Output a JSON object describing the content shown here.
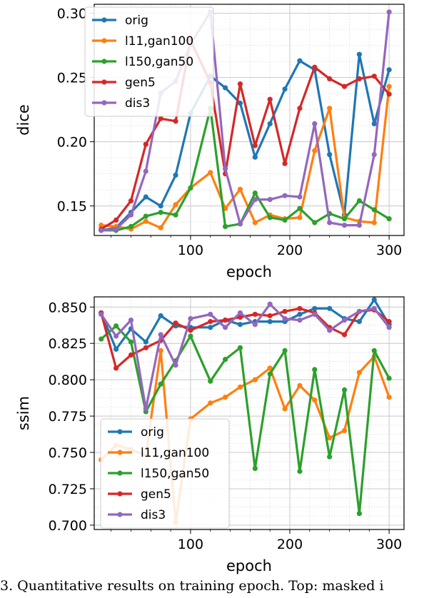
{
  "caption": "3. Quantitative results on training epoch. Top: masked i",
  "chart_data": [
    {
      "type": "line",
      "xlabel": "epoch",
      "ylabel": "dice",
      "xlim": [
        3,
        315
      ],
      "ylim": [
        0.127,
        0.307
      ],
      "xticks": [
        100,
        200,
        300
      ],
      "yticks": [
        0.15,
        0.2,
        0.25,
        0.3
      ],
      "ytick_labels": [
        "0.15",
        "0.20",
        "0.25",
        "0.30"
      ],
      "grid": true,
      "legend_position": "top-left",
      "x": [
        10,
        25,
        40,
        55,
        70,
        85,
        100,
        120,
        135,
        150,
        165,
        180,
        195,
        210,
        225,
        240,
        255,
        270,
        285,
        300
      ],
      "series": [
        {
          "name": "orig",
          "color": "#1f77b4",
          "values": [
            0.131,
            0.133,
            0.145,
            0.157,
            0.15,
            0.174,
            0.222,
            0.251,
            0.242,
            0.23,
            0.188,
            0.214,
            0.241,
            0.263,
            0.256,
            0.19,
            0.143,
            0.268,
            0.214,
            0.256
          ]
        },
        {
          "name": "l11,gan100",
          "color": "#ff7f0e",
          "values": [
            0.135,
            0.134,
            0.132,
            0.138,
            0.133,
            0.151,
            0.164,
            0.176,
            0.148,
            0.163,
            0.137,
            0.143,
            0.14,
            0.141,
            0.193,
            0.226,
            0.141,
            0.138,
            0.137,
            0.243
          ]
        },
        {
          "name": "l150,gan50",
          "color": "#2ca02c",
          "values": [
            0.131,
            0.131,
            0.134,
            0.142,
            0.145,
            0.143,
            0.164,
            0.226,
            0.134,
            0.136,
            0.16,
            0.141,
            0.139,
            0.148,
            0.137,
            0.144,
            0.14,
            0.154,
            0.147,
            0.14
          ]
        },
        {
          "name": "gen5",
          "color": "#d62728",
          "values": [
            0.132,
            0.139,
            0.154,
            0.198,
            0.218,
            0.216,
            0.279,
            0.246,
            0.175,
            0.245,
            0.197,
            0.233,
            0.183,
            0.226,
            0.258,
            0.249,
            0.243,
            0.249,
            0.251,
            0.237
          ]
        },
        {
          "name": "dis3",
          "color": "#9467bd",
          "values": [
            0.131,
            0.132,
            0.143,
            0.177,
            0.238,
            0.247,
            0.276,
            0.301,
            0.179,
            0.136,
            0.155,
            0.155,
            0.158,
            0.157,
            0.214,
            0.137,
            0.135,
            0.135,
            0.19,
            0.301
          ]
        }
      ]
    },
    {
      "type": "line",
      "xlabel": "epoch",
      "ylabel": "ssim",
      "xlim": [
        3,
        315
      ],
      "ylim": [
        0.697,
        0.857
      ],
      "xticks": [
        100,
        200,
        300
      ],
      "yticks": [
        0.7,
        0.725,
        0.75,
        0.775,
        0.8,
        0.825,
        0.85
      ],
      "ytick_labels": [
        "0.700",
        "0.725",
        "0.750",
        "0.775",
        "0.800",
        "0.825",
        "0.850"
      ],
      "grid": true,
      "legend_position": "lower-left",
      "x": [
        10,
        25,
        40,
        55,
        70,
        85,
        100,
        120,
        135,
        150,
        165,
        180,
        195,
        210,
        225,
        240,
        255,
        270,
        285,
        300
      ],
      "series": [
        {
          "name": "orig",
          "color": "#1f77b4",
          "values": [
            0.846,
            0.821,
            0.835,
            0.826,
            0.844,
            0.837,
            0.836,
            0.836,
            0.841,
            0.838,
            0.84,
            0.84,
            0.84,
            0.845,
            0.849,
            0.849,
            0.842,
            0.84,
            0.855,
            0.838
          ]
        },
        {
          "name": "l11,gan100",
          "color": "#ff7f0e",
          "values": [
            0.745,
            0.755,
            0.752,
            0.748,
            0.82,
            0.702,
            0.773,
            0.784,
            0.788,
            0.795,
            0.8,
            0.808,
            0.78,
            0.796,
            0.786,
            0.76,
            0.765,
            0.805,
            0.816,
            0.788
          ]
        },
        {
          "name": "l150,gan50",
          "color": "#2ca02c",
          "values": [
            0.828,
            0.837,
            0.826,
            0.778,
            0.797,
            0.813,
            0.83,
            0.799,
            0.814,
            0.822,
            0.739,
            0.804,
            0.82,
            0.737,
            0.807,
            0.747,
            0.793,
            0.708,
            0.82,
            0.801
          ]
        },
        {
          "name": "gen5",
          "color": "#d62728",
          "values": [
            0.846,
            0.808,
            0.817,
            0.822,
            0.827,
            0.839,
            0.834,
            0.84,
            0.841,
            0.843,
            0.845,
            0.844,
            0.847,
            0.849,
            0.846,
            0.836,
            0.831,
            0.847,
            0.848,
            0.84
          ]
        },
        {
          "name": "dis3",
          "color": "#9467bd",
          "values": [
            0.845,
            0.83,
            0.841,
            0.78,
            0.831,
            0.81,
            0.842,
            0.845,
            0.836,
            0.846,
            0.838,
            0.852,
            0.842,
            0.841,
            0.845,
            0.834,
            0.841,
            0.847,
            0.849,
            0.836
          ]
        }
      ]
    }
  ]
}
